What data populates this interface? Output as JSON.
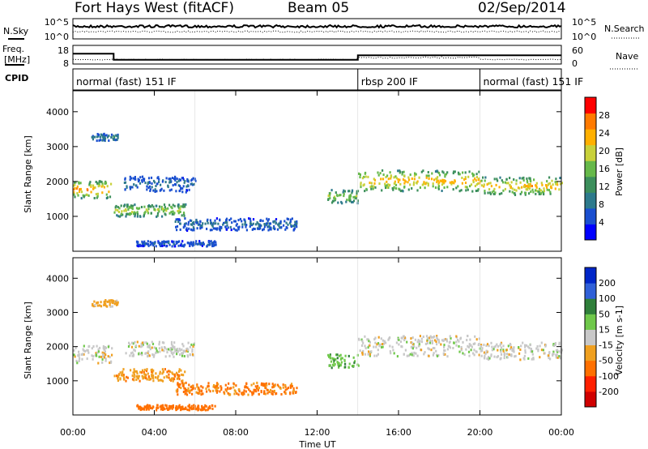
{
  "header": {
    "site": "Fort Hays West (fitACF)",
    "beam": "Beam 05",
    "date": "02/Sep/2014"
  },
  "chart_data": {
    "type": "heatmap",
    "xlabel": "Time UT",
    "x_ticks": [
      "00:00",
      "04:00",
      "08:00",
      "12:00",
      "16:00",
      "20:00",
      "00:00"
    ],
    "xlim_hours": [
      0,
      24
    ],
    "nsky_panel": {
      "left_label": "N.Sky",
      "right_label": "N.Search",
      "left_ticks": [
        "10^5",
        "10^0"
      ],
      "right_ticks": [
        "10^5",
        "10^0"
      ]
    },
    "freq_panel": {
      "left_label_1": "Freq.",
      "left_label_2": "[MHz]",
      "right_label": "Nave",
      "left_ticks": [
        18,
        8
      ],
      "right_ticks": [
        60,
        0
      ],
      "freq_steps": [
        {
          "t0": 0,
          "t1": 2.0,
          "mhz": 13.5
        },
        {
          "t0": 2.0,
          "t1": 14.0,
          "mhz": 10.3
        },
        {
          "t0": 14.0,
          "t1": 24,
          "mhz": 12.7
        }
      ]
    },
    "cpid": {
      "label": "CPID",
      "segments": [
        {
          "t0": 0,
          "t1": 14.0,
          "text": "normal (fast) 151 IF"
        },
        {
          "t0": 14.0,
          "t1": 20.0,
          "text": "rbsp 200 IF"
        },
        {
          "t0": 20.0,
          "t1": 24,
          "text": "normal (fast) 151 IF"
        }
      ]
    },
    "power_panel": {
      "ylabel": "Slant Range [km]",
      "ylim": [
        0,
        4600
      ],
      "y_ticks": [
        1000,
        2000,
        3000,
        4000
      ],
      "colorbar_label": "Power [dB]",
      "colorbar_range": [
        0,
        32
      ],
      "colorbar_ticks": [
        4,
        8,
        12,
        16,
        20,
        24,
        28
      ],
      "colorbar_colors": [
        "#0000ff",
        "#1a4fd0",
        "#2d7a8c",
        "#3c8f5c",
        "#66b94a",
        "#c8d13a",
        "#ffb000",
        "#ff7a00",
        "#ff0000"
      ]
    },
    "velocity_panel": {
      "ylabel": "Slant Range [km]",
      "ylim": [
        0,
        4600
      ],
      "y_ticks": [
        1000,
        2000,
        3000,
        4000
      ],
      "colorbar_label": "Velocity [m s-1]",
      "colorbar_ticks": [
        "200",
        "100",
        "50",
        "15",
        "-15",
        "-50",
        "-100",
        "-200"
      ],
      "colorbar_colors": [
        "#0026c8",
        "#3060d8",
        "#2f7f3a",
        "#6fc84a",
        "#c8c8c8",
        "#f0a020",
        "#ff7000",
        "#ff2000",
        "#d00000"
      ]
    },
    "echo_regions": [
      {
        "t0": 0.0,
        "t1": 1.9,
        "r_center": 1800,
        "r_width": 500,
        "power": 24,
        "velocity": 0
      },
      {
        "t0": 0.9,
        "t1": 2.2,
        "r_center": 3300,
        "r_width": 200,
        "power": 8,
        "velocity": -30
      },
      {
        "t0": 2.0,
        "t1": 5.5,
        "r_center": 1200,
        "r_width": 350,
        "power": 18,
        "velocity": -40
      },
      {
        "t0": 2.5,
        "t1": 6.0,
        "r_center": 1950,
        "r_width": 450,
        "power": 6,
        "velocity": 0
      },
      {
        "t0": 5.0,
        "t1": 11.0,
        "r_center": 800,
        "r_width": 350,
        "power": 6,
        "velocity": -60
      },
      {
        "t0": 3.0,
        "t1": 7.0,
        "r_center": 250,
        "r_width": 150,
        "power": 5,
        "velocity": -70
      },
      {
        "t0": 12.5,
        "t1": 14.0,
        "r_center": 1600,
        "r_width": 400,
        "power": 16,
        "velocity": 40
      },
      {
        "t0": 14.0,
        "t1": 20.0,
        "r_center": 2050,
        "r_width": 600,
        "power": 22,
        "velocity": 0
      },
      {
        "t0": 20.0,
        "t1": 24.0,
        "r_center": 1900,
        "r_width": 500,
        "power": 22,
        "velocity": 0
      }
    ]
  }
}
